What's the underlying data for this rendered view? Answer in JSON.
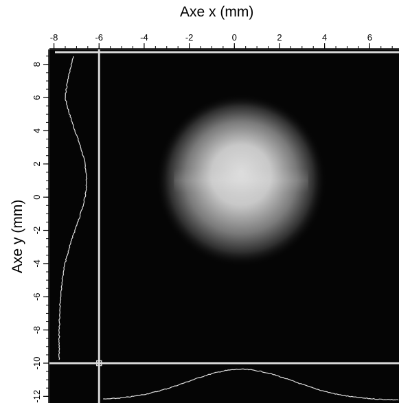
{
  "chart_data": {
    "type": "heatmap",
    "title": "",
    "xlabel": "Axe x (mm)",
    "ylabel": "Axe y (mm)",
    "xlim": [
      -8.2,
      7.3
    ],
    "ylim": [
      -12.4,
      8.9
    ],
    "x_ticks": [
      -8,
      -6,
      -4,
      -2,
      0,
      2,
      4,
      6
    ],
    "y_ticks": [
      8,
      6,
      4,
      2,
      0,
      -2,
      -4,
      -6,
      -8,
      -10,
      -12
    ],
    "x_tick_labels": [
      "-8",
      "-6",
      "-4",
      "-2",
      "0",
      "2",
      "4",
      "6"
    ],
    "y_tick_labels": [
      "8",
      "6",
      "4",
      "2",
      "0",
      "-2",
      "-4",
      "-6",
      "-8",
      "-10",
      "-12"
    ],
    "colormap": "grayscale",
    "beam_spot": {
      "center_x": 0.3,
      "center_y": 1.0,
      "half_width_x": 3.5,
      "half_width_y": 4.8
    },
    "cursor_x": -6.0,
    "cursor_y": -10.0,
    "colors": {
      "background": "#050505",
      "cursor_line": "#d8d8d8",
      "profile_line": "#e0e0e0",
      "axis_color": "#000000"
    }
  }
}
